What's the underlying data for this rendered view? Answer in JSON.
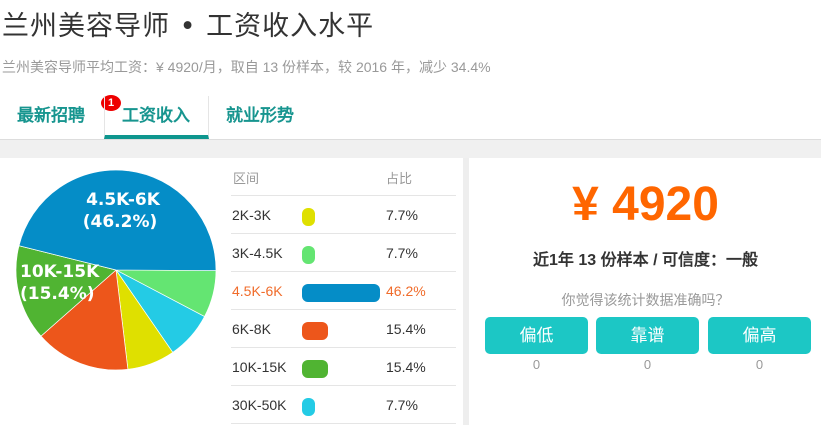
{
  "header": {
    "title": "兰州美容导师 • 工资收入水平",
    "subtitle": "兰州美容导师平均工资：¥ 4920/月，取自 13 份样本，较 2016 年，减少 34.4%"
  },
  "tabs": [
    {
      "label": "最新招聘",
      "badge": "1"
    },
    {
      "label": "工资收入",
      "active": true
    },
    {
      "label": "就业形势"
    }
  ],
  "table": {
    "col_range": "区间",
    "col_ratio": "占比",
    "rows": [
      {
        "range": "2K-3K",
        "ratio": "7.7%",
        "value": 7.7,
        "color": "#dfe000"
      },
      {
        "range": "3K-4.5K",
        "ratio": "7.7%",
        "value": 7.7,
        "color": "#64e572"
      },
      {
        "range": "4.5K-6K",
        "ratio": "46.2%",
        "value": 46.2,
        "color": "#058dc7",
        "highlight": true
      },
      {
        "range": "6K-8K",
        "ratio": "15.4%",
        "value": 15.4,
        "color": "#ed561b"
      },
      {
        "range": "10K-15K",
        "ratio": "15.4%",
        "value": 15.4,
        "color": "#50b432"
      },
      {
        "range": "30K-50K",
        "ratio": "7.7%",
        "value": 7.7,
        "color": "#24cbe5"
      }
    ]
  },
  "chart_data": {
    "type": "pie",
    "slices": [
      {
        "label": "3K-4.5K",
        "value": 7.7,
        "color": "#64e572"
      },
      {
        "label": "30K-50K",
        "value": 7.7,
        "color": "#24cbe5"
      },
      {
        "label": "2K-3K",
        "value": 7.7,
        "color": "#dfe000"
      },
      {
        "label": "6K-8K",
        "value": 15.4,
        "color": "#ed561b"
      },
      {
        "label": "10K-15K",
        "value": 15.4,
        "color": "#50b432"
      },
      {
        "label": "4.5K-6K",
        "value": 46.2,
        "color": "#058dc7"
      }
    ],
    "data_labels": [
      {
        "label": "4.5K-6K",
        "pct": "(46.2%)"
      },
      {
        "label": "10K-15K",
        "pct": "(15.4%)"
      }
    ]
  },
  "summary": {
    "salary": "¥ 4920",
    "confidence": "近1年 13 份样本 / 可信度：一般",
    "question": "你觉得该统计数据准确吗？",
    "votes": [
      {
        "label": "偏低",
        "count": "0"
      },
      {
        "label": "靠谱",
        "count": "0"
      },
      {
        "label": "偏高",
        "count": "0"
      }
    ]
  }
}
